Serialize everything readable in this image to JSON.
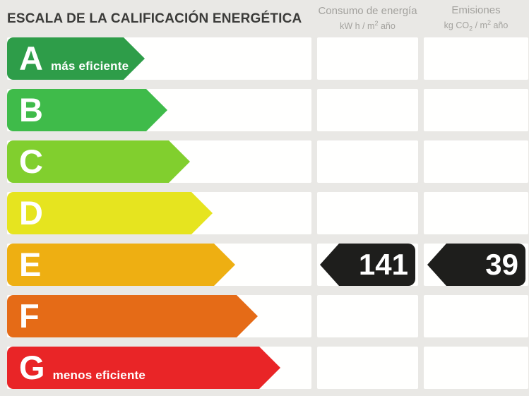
{
  "title": "ESCALA DE LA CALIFICACIÓN ENERGÉTICA",
  "columns": {
    "consumo": {
      "label": "Consumo de energía",
      "unit_prefix": "kW h / m",
      "unit_sup": "2",
      "unit_suffix": " año"
    },
    "emisiones": {
      "label": "Emisiones",
      "unit_p1": "kg CO",
      "unit_sub": "2",
      "unit_p2": " / m",
      "unit_sup": "2",
      "unit_p3": " año"
    }
  },
  "badge_color": "#1e1e1c",
  "rows": [
    {
      "letter": "A",
      "note": "más eficiente",
      "color": "#2e9d49"
    },
    {
      "letter": "B",
      "color": "#3fbb4a"
    },
    {
      "letter": "C",
      "color": "#81cf2e"
    },
    {
      "letter": "D",
      "color": "#e6e41f"
    },
    {
      "letter": "E",
      "color": "#eeaf12",
      "consumo": "141",
      "emisiones": "39"
    },
    {
      "letter": "F",
      "color": "#e56b17"
    },
    {
      "letter": "G",
      "note": "menos eficiente",
      "color": "#e92527"
    }
  ],
  "chart_data": {
    "type": "bar",
    "title": "ESCALA DE LA CALIFICACIÓN ENERGÉTICA",
    "categories": [
      "A",
      "B",
      "C",
      "D",
      "E",
      "F",
      "G"
    ],
    "category_labels": {
      "A": "más eficiente",
      "G": "menos eficiente"
    },
    "bar_colors": [
      "#2e9d49",
      "#3fbb4a",
      "#81cf2e",
      "#e6e41f",
      "#eeaf12",
      "#e56b17",
      "#e92527"
    ],
    "rating": "E",
    "values": [
      {
        "column": "Consumo de energía",
        "unit": "kW h / m2 año",
        "row": "E",
        "value": 141
      },
      {
        "column": "Emisiones",
        "unit": "kg CO2 / m2 año",
        "row": "E",
        "value": 39
      }
    ],
    "legend_position": "none",
    "grid": false
  }
}
